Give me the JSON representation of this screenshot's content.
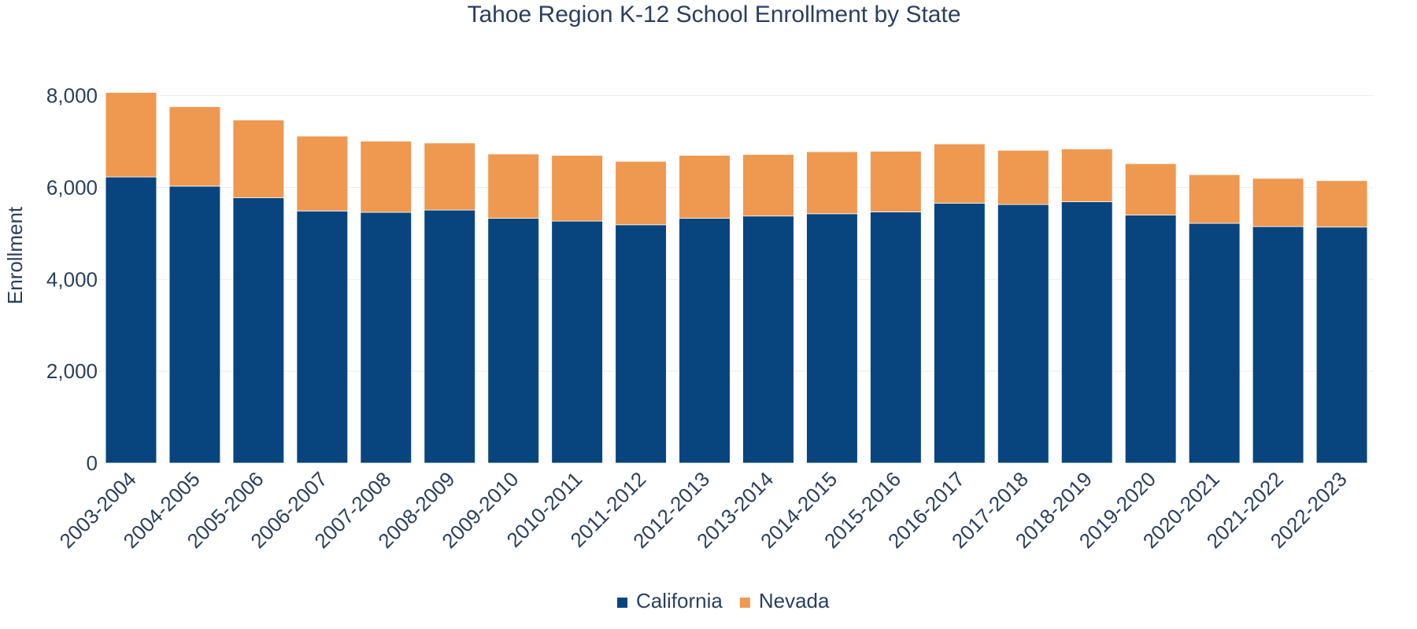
{
  "chart_data": {
    "type": "bar",
    "stacked": true,
    "title": "Tahoe Region K-12 School Enrollment by State",
    "xlabel": "",
    "ylabel": "Enrollment",
    "ylim": [
      0,
      8200
    ],
    "yticks": [
      0,
      2000,
      4000,
      6000,
      8000
    ],
    "ytick_labels": [
      "0",
      "2,000",
      "4,000",
      "6,000",
      "8,000"
    ],
    "grid": true,
    "legend_position": "bottom-center",
    "categories": [
      "2003-2004",
      "2004-2005",
      "2005-2006",
      "2006-2007",
      "2007-2008",
      "2008-2009",
      "2009-2010",
      "2010-2011",
      "2011-2012",
      "2012-2013",
      "2013-2014",
      "2014-2015",
      "2015-2016",
      "2016-2017",
      "2017-2018",
      "2018-2019",
      "2019-2020",
      "2020-2021",
      "2021-2022",
      "2022-2023"
    ],
    "series": [
      {
        "name": "California",
        "color": "#08457e",
        "values": [
          6230,
          6030,
          5780,
          5490,
          5460,
          5510,
          5330,
          5270,
          5190,
          5330,
          5380,
          5430,
          5470,
          5660,
          5630,
          5690,
          5400,
          5220,
          5150,
          5140
        ]
      },
      {
        "name": "Nevada",
        "color": "#ef9850",
        "values": [
          1840,
          1730,
          1690,
          1630,
          1550,
          1460,
          1400,
          1430,
          1380,
          1370,
          1340,
          1350,
          1320,
          1290,
          1180,
          1150,
          1120,
          1060,
          1050,
          1010
        ]
      }
    ]
  }
}
